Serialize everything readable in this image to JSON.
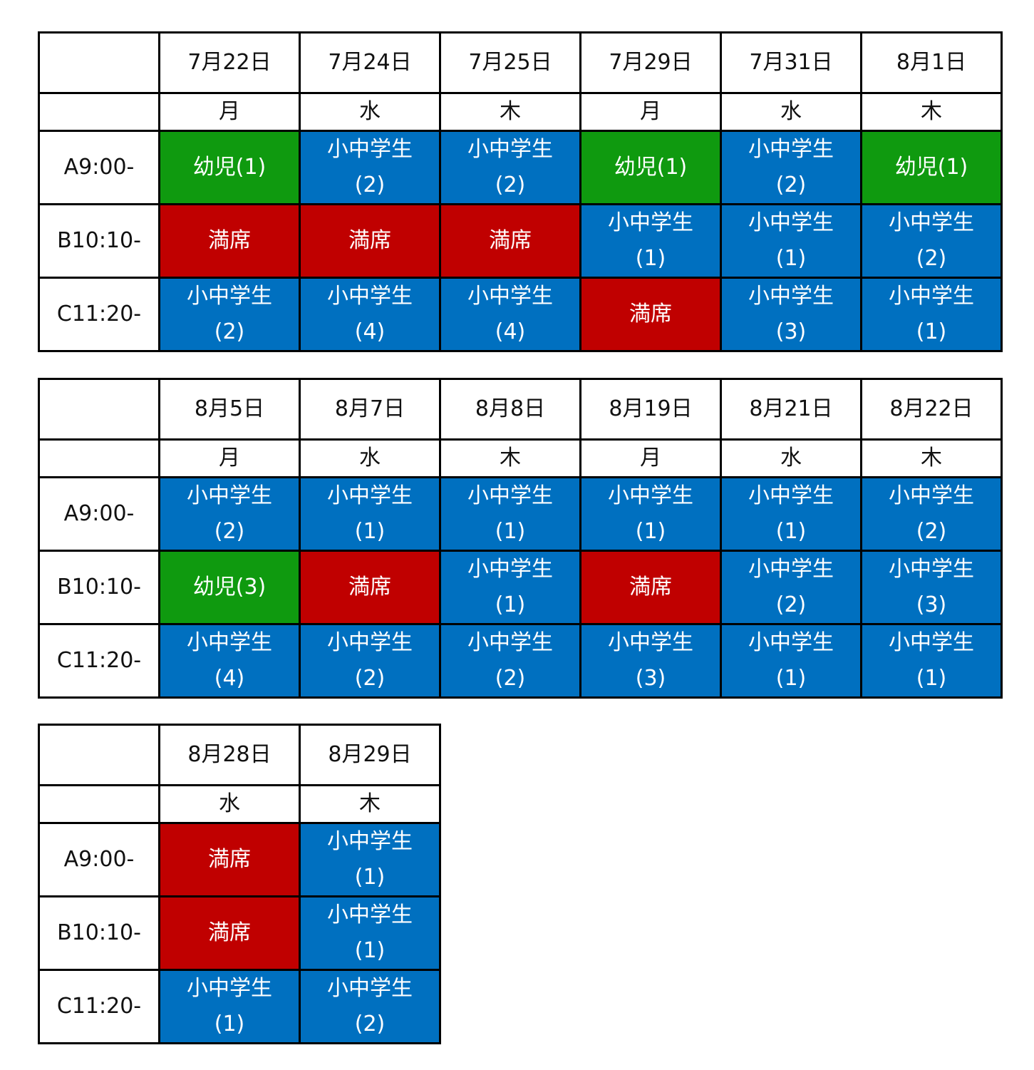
{
  "colors": {
    "kid": "#0f9a0f",
    "full": "#c00000",
    "open": "#0070c0"
  },
  "slot_labels": [
    "A9:00-",
    "B10:10-",
    "C11:20-"
  ],
  "tables": [
    {
      "dates": [
        "7月22日",
        "7月24日",
        "7月25日",
        "7月29日",
        "7月31日",
        "8月1日"
      ],
      "weekdays": [
        "月",
        "水",
        "木",
        "月",
        "水",
        "木"
      ],
      "rows": [
        [
          {
            "type": "kid",
            "line1": "幼児(1)",
            "line2": ""
          },
          {
            "type": "open",
            "line1": "小中学生",
            "line2": "(2)"
          },
          {
            "type": "open",
            "line1": "小中学生",
            "line2": "(2)"
          },
          {
            "type": "kid",
            "line1": "幼児(1)",
            "line2": ""
          },
          {
            "type": "open",
            "line1": "小中学生",
            "line2": "(2)"
          },
          {
            "type": "kid",
            "line1": "幼児(1)",
            "line2": ""
          }
        ],
        [
          {
            "type": "full",
            "line1": "満席",
            "line2": ""
          },
          {
            "type": "full",
            "line1": "満席",
            "line2": ""
          },
          {
            "type": "full",
            "line1": "満席",
            "line2": ""
          },
          {
            "type": "open",
            "line1": "小中学生",
            "line2": "(1)"
          },
          {
            "type": "open",
            "line1": "小中学生",
            "line2": "(1)"
          },
          {
            "type": "open",
            "line1": "小中学生",
            "line2": "(2)"
          }
        ],
        [
          {
            "type": "open",
            "line1": "小中学生",
            "line2": "(2)"
          },
          {
            "type": "open",
            "line1": "小中学生",
            "line2": "(4)"
          },
          {
            "type": "open",
            "line1": "小中学生",
            "line2": "(4)"
          },
          {
            "type": "full",
            "line1": "満席",
            "line2": ""
          },
          {
            "type": "open",
            "line1": "小中学生",
            "line2": "(3)"
          },
          {
            "type": "open",
            "line1": "小中学生",
            "line2": "(1)"
          }
        ]
      ]
    },
    {
      "dates": [
        "8月5日",
        "8月7日",
        "8月8日",
        "8月19日",
        "8月21日",
        "8月22日"
      ],
      "weekdays": [
        "月",
        "水",
        "木",
        "月",
        "水",
        "木"
      ],
      "rows": [
        [
          {
            "type": "open",
            "line1": "小中学生",
            "line2": "(2)"
          },
          {
            "type": "open",
            "line1": "小中学生",
            "line2": "(1)"
          },
          {
            "type": "open",
            "line1": "小中学生",
            "line2": "(1)"
          },
          {
            "type": "open",
            "line1": "小中学生",
            "line2": "(1)"
          },
          {
            "type": "open",
            "line1": "小中学生",
            "line2": "(1)"
          },
          {
            "type": "open",
            "line1": "小中学生",
            "line2": "(2)"
          }
        ],
        [
          {
            "type": "kid",
            "line1": "幼児(3)",
            "line2": ""
          },
          {
            "type": "full",
            "line1": "満席",
            "line2": ""
          },
          {
            "type": "open",
            "line1": "小中学生",
            "line2": "(1)"
          },
          {
            "type": "full",
            "line1": "満席",
            "line2": ""
          },
          {
            "type": "open",
            "line1": "小中学生",
            "line2": "(2)"
          },
          {
            "type": "open",
            "line1": "小中学生",
            "line2": "(3)"
          }
        ],
        [
          {
            "type": "open",
            "line1": "小中学生",
            "line2": "(4)"
          },
          {
            "type": "open",
            "line1": "小中学生",
            "line2": "(2)"
          },
          {
            "type": "open",
            "line1": "小中学生",
            "line2": "(2)"
          },
          {
            "type": "open",
            "line1": "小中学生",
            "line2": "(3)"
          },
          {
            "type": "open",
            "line1": "小中学生",
            "line2": "(1)"
          },
          {
            "type": "open",
            "line1": "小中学生",
            "line2": "(1)"
          }
        ]
      ]
    },
    {
      "dates": [
        "8月28日",
        "8月29日"
      ],
      "weekdays": [
        "水",
        "木"
      ],
      "rows": [
        [
          {
            "type": "full",
            "line1": "満席",
            "line2": ""
          },
          {
            "type": "open",
            "line1": "小中学生",
            "line2": "(1)"
          }
        ],
        [
          {
            "type": "full",
            "line1": "満席",
            "line2": ""
          },
          {
            "type": "open",
            "line1": "小中学生",
            "line2": "(1)"
          }
        ],
        [
          {
            "type": "open",
            "line1": "小中学生",
            "line2": "(1)"
          },
          {
            "type": "open",
            "line1": "小中学生",
            "line2": "(2)"
          }
        ]
      ]
    }
  ]
}
